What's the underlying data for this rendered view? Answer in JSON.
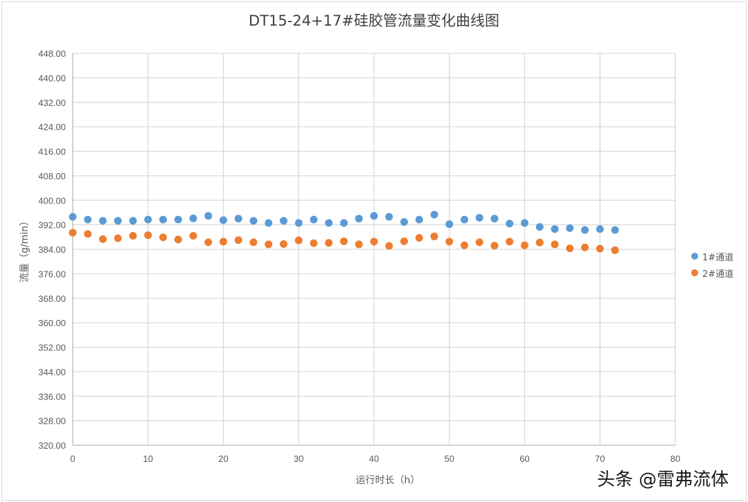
{
  "chart_data": {
    "type": "scatter",
    "title": "DT15-24+17#硅胶管流量变化曲线图",
    "xlabel": "运行时长（h）",
    "ylabel": "流量（g/min）",
    "xlim": [
      0,
      80
    ],
    "ylim": [
      320,
      448
    ],
    "x_ticks": [
      0,
      10,
      20,
      30,
      40,
      50,
      60,
      70,
      80
    ],
    "y_ticks": [
      "320.00",
      "328.00",
      "336.00",
      "344.00",
      "352.00",
      "360.00",
      "368.00",
      "376.00",
      "384.00",
      "392.00",
      "400.00",
      "408.00",
      "416.00",
      "424.00",
      "432.00",
      "440.00",
      "448.00"
    ],
    "grid": true,
    "legend_position": "right",
    "x": [
      0,
      2,
      4,
      6,
      8,
      10,
      12,
      14,
      16,
      18,
      20,
      22,
      24,
      26,
      28,
      30,
      32,
      34,
      36,
      38,
      40,
      42,
      44,
      46,
      48,
      50,
      52,
      54,
      56,
      58,
      60,
      62,
      64,
      66,
      68,
      70,
      72
    ],
    "series": [
      {
        "name": "1#通道",
        "color": "#5b9bd5",
        "values": [
          394.6,
          393.7,
          393.3,
          393.3,
          393.3,
          393.7,
          393.7,
          393.7,
          394.1,
          394.9,
          393.5,
          394.0,
          393.3,
          392.6,
          393.3,
          392.6,
          393.7,
          392.6,
          392.6,
          394.0,
          394.9,
          394.6,
          392.9,
          393.7,
          395.3,
          392.2,
          393.7,
          394.3,
          394.0,
          392.4,
          392.6,
          391.3,
          390.6,
          390.9,
          390.3,
          390.6,
          390.3
        ]
      },
      {
        "name": "2#通道",
        "color": "#ed7d31",
        "values": [
          389.4,
          389.0,
          387.3,
          387.6,
          388.4,
          388.6,
          387.9,
          387.2,
          388.4,
          386.3,
          386.5,
          387.0,
          386.3,
          385.6,
          385.7,
          386.9,
          386.0,
          386.1,
          386.6,
          385.6,
          386.5,
          385.1,
          386.6,
          387.7,
          388.2,
          386.5,
          385.3,
          386.3,
          385.2,
          386.5,
          385.3,
          386.2,
          385.6,
          384.3,
          384.6,
          384.2,
          383.7
        ]
      }
    ]
  },
  "watermark": "头条 @雷弗流体",
  "colors": {
    "grid": "#d9d9d9",
    "axis": "#bfbfbf",
    "text": "#595959"
  }
}
